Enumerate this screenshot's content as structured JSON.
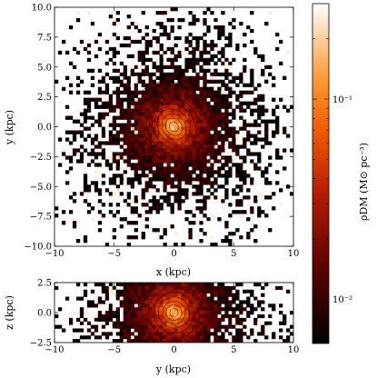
{
  "chart_data": [
    {
      "type": "heatmap",
      "panel": "face-on",
      "xlabel": "x (kpc)",
      "ylabel": "y (kpc)",
      "xlim": [
        -10,
        10
      ],
      "ylim": [
        -10,
        10
      ],
      "xticks": [
        "−10",
        "−5",
        "0",
        "5",
        "10"
      ],
      "yticks": [
        "10.0",
        "7.5",
        "5.0",
        "2.5",
        "0.0",
        "−2.5",
        "−5.0",
        "−7.5",
        "−10.0"
      ],
      "xtick_values": [
        -10,
        -5,
        0,
        5,
        10
      ],
      "ytick_values": [
        10,
        7.5,
        5,
        2.5,
        0,
        -2.5,
        -5,
        -7.5,
        -10
      ],
      "contour_center": [
        0,
        0
      ]
    },
    {
      "type": "heatmap",
      "panel": "edge-on",
      "xlabel": "y (kpc)",
      "ylabel": "z (kpc)",
      "xlim": [
        -10,
        10
      ],
      "ylim": [
        -2.5,
        2.5
      ],
      "xticks": [
        "−10",
        "−5",
        "0",
        "5",
        "10"
      ],
      "yticks": [
        "2.5",
        "0.0",
        "−2.5"
      ],
      "xtick_values": [
        -10,
        -5,
        0,
        5,
        10
      ],
      "ytick_values": [
        2.5,
        0,
        -2.5
      ],
      "contour_center": [
        0,
        0
      ]
    }
  ],
  "colorbar": {
    "label": "ρDM (M⊙ pc⁻³)",
    "scale": "log",
    "range": [
      0.006,
      0.3
    ],
    "ticks": [
      "10⁻¹",
      "10⁻²"
    ],
    "tick_values": [
      0.1,
      0.01
    ],
    "colormap": "gist_heat_r"
  }
}
